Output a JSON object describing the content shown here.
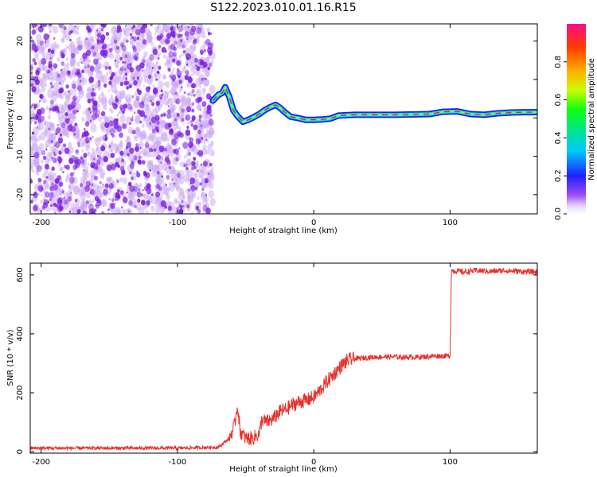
{
  "title": "S122.2023.010.01.16.R15",
  "colors": {
    "snr_line": "#e8302a",
    "track_outer": "#1b1bff",
    "track_mid": "#00d8ff",
    "track_core": "#e0242a",
    "noise_dark": "#7a1ee0",
    "noise_light": "#c9a6f3"
  },
  "chart_data": [
    {
      "type": "heatmap",
      "xlabel": "Height of straight line (km)",
      "ylabel": "Frequency (Hz)",
      "xlim": [
        -208,
        164
      ],
      "ylim": [
        -25,
        24.5
      ],
      "x_ticks": [
        -200,
        -100,
        0,
        100
      ],
      "x_tick_labels": [
        "-200",
        "-100",
        "0",
        "100"
      ],
      "y_ticks": [
        -20,
        -10,
        0,
        10,
        20
      ],
      "y_tick_labels": [
        "-20",
        "-10",
        "0",
        "10",
        "20"
      ],
      "grid": false,
      "noise_region_x": [
        -208,
        -74
      ],
      "track": {
        "x": [
          -74,
          -70,
          -67,
          -65,
          -62,
          -59,
          -56,
          -52,
          -48,
          -44,
          -40,
          -36,
          -32,
          -28,
          -25,
          -21,
          -17,
          -12,
          -6,
          0,
          6,
          12,
          18,
          30,
          45,
          60,
          75,
          85,
          95,
          105,
          115,
          125,
          135,
          145,
          155,
          164
        ],
        "y": [
          4.5,
          6,
          6.5,
          8,
          5.5,
          2,
          0.5,
          -1,
          -0.5,
          0.2,
          1,
          2,
          2.8,
          3.4,
          2.7,
          1.4,
          0.3,
          0,
          -0.5,
          -0.5,
          -0.4,
          -0.2,
          0.6,
          0.8,
          0.8,
          0.8,
          0.9,
          1,
          1.6,
          1.7,
          1,
          0.8,
          1.2,
          1.4,
          1.5,
          1.5
        ]
      },
      "colorbar": {
        "label": "Normalized spectral amplitude",
        "range": [
          0,
          1
        ],
        "ticks": [
          0,
          0.2,
          0.4,
          0.6,
          0.8
        ],
        "tick_labels": [
          "0.0",
          "0.2",
          "0.4",
          "0.6",
          "0.8"
        ]
      }
    },
    {
      "type": "line",
      "xlabel": "Height of straight line (km)",
      "ylabel": "SNR (10 * v/v)",
      "xlim": [
        -208,
        164
      ],
      "ylim": [
        -5,
        640
      ],
      "x_ticks": [
        -200,
        -100,
        0,
        100
      ],
      "x_tick_labels": [
        "-200",
        "-100",
        "0",
        "100"
      ],
      "y_ticks": [
        0,
        200,
        400,
        600
      ],
      "y_tick_labels": [
        "0",
        "200",
        "400",
        "600"
      ],
      "grid": false,
      "series": [
        {
          "x": [
            -208,
            -150,
            -100,
            -70,
            -62,
            -58,
            -56,
            -54,
            -50,
            -45,
            -40,
            -38,
            -35,
            -30,
            -25,
            -20,
            -15,
            -10,
            -5,
            0,
            5,
            10,
            15,
            20,
            25,
            30,
            40,
            50,
            60,
            70,
            80,
            90,
            100,
            101,
            110,
            120,
            130,
            140,
            150,
            164
          ],
          "y": [
            12,
            12,
            12,
            15,
            45,
            90,
            160,
            70,
            45,
            45,
            60,
            110,
            100,
            110,
            135,
            145,
            160,
            170,
            175,
            185,
            210,
            240,
            265,
            290,
            310,
            315,
            320,
            322,
            322,
            320,
            322,
            325,
            325,
            615,
            610,
            615,
            612,
            615,
            612,
            610
          ]
        }
      ]
    }
  ]
}
